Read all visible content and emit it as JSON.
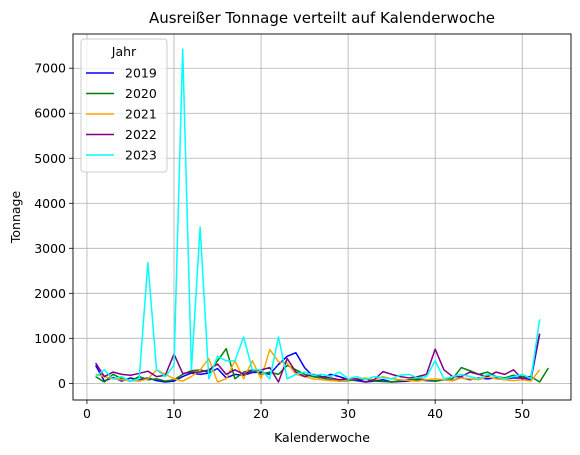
{
  "chart_data": {
    "type": "line",
    "title": "Ausreißer Tonnage verteilt auf Kalenderwoche",
    "xlabel": "Kalenderwoche",
    "ylabel": "Tonnage",
    "xlim": [
      -1.6,
      55.6
    ],
    "ylim": [
      -370,
      7760
    ],
    "xticks": [
      0,
      10,
      20,
      30,
      40,
      50
    ],
    "yticks": [
      0,
      1000,
      2000,
      3000,
      4000,
      5000,
      6000,
      7000
    ],
    "grid": true,
    "legend": {
      "title": "Jahr",
      "position": "upper-left"
    },
    "series": [
      {
        "name": "2019",
        "color": "#0000ff",
        "x": [
          1,
          2,
          3,
          4,
          5,
          6,
          7,
          8,
          9,
          10,
          11,
          12,
          13,
          14,
          15,
          16,
          17,
          18,
          19,
          20,
          21,
          22,
          23,
          24,
          25,
          26,
          27,
          28,
          29,
          30,
          31,
          32,
          33,
          34,
          35,
          36,
          37,
          38,
          39,
          40,
          41,
          42,
          43,
          44,
          45,
          46,
          47,
          48,
          49,
          50,
          51,
          52
        ],
        "y": [
          400,
          50,
          130,
          50,
          120,
          80,
          120,
          60,
          30,
          50,
          150,
          230,
          200,
          230,
          330,
          120,
          200,
          180,
          240,
          250,
          200,
          420,
          600,
          680,
          350,
          150,
          120,
          200,
          150,
          80,
          60,
          30,
          50,
          80,
          30,
          40,
          50,
          80,
          60,
          50,
          80,
          60,
          130,
          80,
          120,
          100,
          120,
          100,
          120,
          120,
          80,
          1100
        ]
      },
      {
        "name": "2020",
        "color": "#008000",
        "x": [
          1,
          2,
          3,
          4,
          5,
          6,
          7,
          8,
          9,
          10,
          11,
          12,
          13,
          14,
          15,
          16,
          17,
          18,
          19,
          20,
          21,
          22,
          23,
          24,
          25,
          26,
          27,
          28,
          29,
          30,
          31,
          32,
          33,
          34,
          35,
          36,
          37,
          38,
          39,
          40,
          41,
          42,
          43,
          44,
          45,
          46,
          47,
          48,
          49,
          50,
          51,
          52,
          53
        ],
        "y": [
          150,
          30,
          200,
          100,
          50,
          150,
          80,
          100,
          50,
          80,
          200,
          280,
          300,
          250,
          500,
          770,
          100,
          250,
          300,
          200,
          250,
          200,
          400,
          300,
          200,
          150,
          120,
          80,
          50,
          60,
          80,
          100,
          50,
          40,
          30,
          60,
          80,
          100,
          80,
          50,
          80,
          100,
          350,
          280,
          200,
          250,
          150,
          120,
          180,
          150,
          150,
          30,
          340
        ]
      },
      {
        "name": "2021",
        "color": "#ffa500",
        "x": [
          1,
          2,
          3,
          4,
          5,
          6,
          7,
          8,
          9,
          10,
          11,
          12,
          13,
          14,
          15,
          16,
          17,
          18,
          19,
          20,
          21,
          22,
          23,
          24,
          25,
          26,
          27,
          28,
          29,
          30,
          31,
          32,
          33,
          34,
          35,
          36,
          37,
          38,
          39,
          40,
          41,
          42,
          43,
          44,
          45,
          46,
          47,
          48,
          49,
          50,
          51,
          52
        ],
        "y": [
          200,
          150,
          100,
          80,
          60,
          50,
          100,
          300,
          200,
          100,
          50,
          150,
          300,
          550,
          30,
          100,
          500,
          100,
          500,
          100,
          750,
          480,
          450,
          200,
          150,
          100,
          80,
          60,
          50,
          80,
          100,
          120,
          80,
          150,
          100,
          80,
          60,
          50,
          80,
          100,
          80,
          60,
          120,
          100,
          80,
          150,
          100,
          80,
          60,
          80,
          50,
          300
        ]
      },
      {
        "name": "2022",
        "color": "#800080",
        "x": [
          1,
          2,
          3,
          4,
          5,
          6,
          7,
          8,
          9,
          10,
          11,
          12,
          13,
          14,
          15,
          16,
          17,
          18,
          19,
          20,
          21,
          22,
          23,
          24,
          25,
          26,
          27,
          28,
          29,
          30,
          31,
          32,
          33,
          34,
          35,
          36,
          37,
          38,
          39,
          40,
          41,
          42,
          43,
          44,
          45,
          46,
          47,
          48,
          49,
          50,
          51,
          52
        ],
        "y": [
          450,
          150,
          250,
          200,
          180,
          220,
          270,
          150,
          180,
          650,
          220,
          250,
          250,
          300,
          430,
          200,
          300,
          200,
          280,
          300,
          350,
          30,
          550,
          250,
          150,
          200,
          150,
          120,
          80,
          100,
          100,
          30,
          80,
          260,
          200,
          150,
          120,
          150,
          200,
          760,
          300,
          150,
          150,
          250,
          200,
          150,
          250,
          200,
          300,
          100,
          150,
          1100
        ]
      },
      {
        "name": "2023",
        "color": "#00ffff",
        "x": [
          1,
          2,
          3,
          4,
          5,
          6,
          7,
          8,
          9,
          10,
          11,
          12,
          13,
          14,
          15,
          16,
          17,
          18,
          19,
          20,
          21,
          22,
          23,
          24,
          25,
          26,
          27,
          28,
          29,
          30,
          31,
          32,
          33,
          34,
          35,
          36,
          37,
          38,
          39,
          40,
          41,
          42,
          43,
          44,
          45,
          46,
          47,
          48,
          49,
          50,
          51,
          52
        ],
        "y": [
          150,
          300,
          100,
          150,
          50,
          100,
          2680,
          300,
          150,
          400,
          7420,
          300,
          3470,
          100,
          600,
          500,
          500,
          1030,
          300,
          300,
          100,
          1030,
          100,
          200,
          250,
          180,
          200,
          150,
          250,
          100,
          150,
          80,
          150,
          120,
          100,
          180,
          200,
          120,
          150,
          500,
          100,
          150,
          200,
          150,
          100,
          200,
          150,
          100,
          150,
          200,
          100,
          1420
        ]
      }
    ]
  }
}
